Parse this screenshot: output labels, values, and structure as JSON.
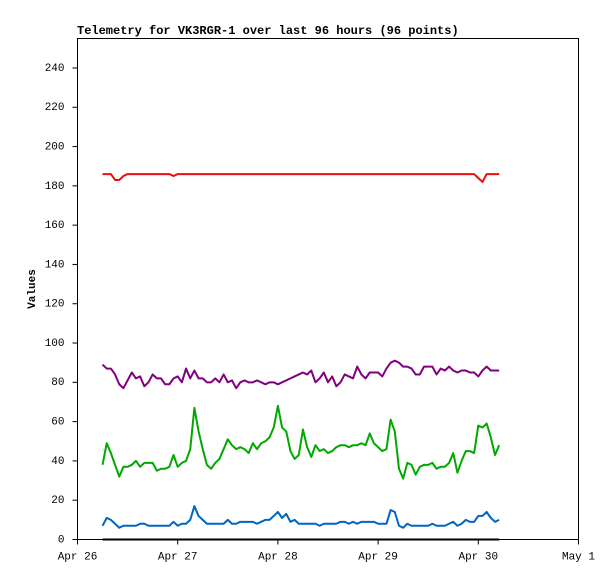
{
  "chart_data": {
    "type": "line",
    "title": "Telemetry for VK3RGR-1 over last 96 hours (96 points)",
    "y_label": "Values",
    "xlim": [
      0,
      120
    ],
    "xticks": [
      {
        "value": 0,
        "label": "Apr 26"
      },
      {
        "value": 24,
        "label": "Apr 27"
      },
      {
        "value": 48,
        "label": "Apr 28"
      },
      {
        "value": 72,
        "label": "Apr 29"
      },
      {
        "value": 96,
        "label": "Apr 30"
      },
      {
        "value": 120,
        "label": "May 1"
      }
    ],
    "ylim": [
      0,
      255
    ],
    "yticks": [
      0,
      20,
      40,
      60,
      80,
      100,
      120,
      140,
      160,
      180,
      200,
      220,
      240
    ],
    "grid": false,
    "x": [
      6,
      7,
      8,
      9,
      10,
      11,
      12,
      13,
      14,
      15,
      16,
      17,
      18,
      19,
      20,
      21,
      22,
      23,
      24,
      25,
      26,
      27,
      28,
      29,
      30,
      31,
      32,
      33,
      34,
      35,
      36,
      37,
      38,
      39,
      40,
      41,
      42,
      43,
      44,
      45,
      46,
      47,
      48,
      49,
      50,
      51,
      52,
      53,
      54,
      55,
      56,
      57,
      58,
      59,
      60,
      61,
      62,
      63,
      64,
      65,
      66,
      67,
      68,
      69,
      70,
      71,
      72,
      73,
      74,
      75,
      76,
      77,
      78,
      79,
      80,
      81,
      82,
      83,
      84,
      85,
      86,
      87,
      88,
      89,
      90,
      91,
      92,
      93,
      94,
      95,
      96,
      97,
      98,
      99,
      100,
      101
    ],
    "series": [
      {
        "color": "#e8100f",
        "values": [
          186,
          186,
          186,
          183,
          183,
          185,
          186,
          186,
          186,
          186,
          186,
          186,
          186,
          186,
          186,
          186,
          186,
          185,
          186,
          186,
          186,
          186,
          186,
          186,
          186,
          186,
          186,
          186,
          186,
          186,
          186,
          186,
          186,
          186,
          186,
          186,
          186,
          186,
          186,
          186,
          186,
          186,
          186,
          186,
          186,
          186,
          186,
          186,
          186,
          186,
          186,
          186,
          186,
          186,
          186,
          186,
          186,
          186,
          186,
          186,
          186,
          186,
          186,
          186,
          186,
          186,
          186,
          186,
          186,
          186,
          186,
          186,
          186,
          186,
          186,
          186,
          186,
          186,
          186,
          186,
          186,
          186,
          186,
          186,
          186,
          186,
          186,
          186,
          186,
          186,
          184,
          182,
          186,
          186,
          186,
          186
        ]
      },
      {
        "color": "#800080",
        "values": [
          89,
          87,
          87,
          84,
          79,
          77,
          81,
          85,
          82,
          83,
          78,
          80,
          84,
          82,
          82,
          79,
          79,
          82,
          83,
          80,
          87,
          82,
          86,
          82,
          82,
          80,
          80,
          82,
          80,
          84,
          80,
          81,
          77,
          80,
          81,
          80,
          80,
          81,
          80,
          79,
          80,
          80,
          79,
          80,
          81,
          82,
          83,
          84,
          85,
          84,
          86,
          80,
          82,
          85,
          80,
          83,
          78,
          80,
          84,
          83,
          82,
          88,
          84,
          82,
          85,
          85,
          85,
          83,
          87,
          90,
          91,
          90,
          88,
          88,
          87,
          84,
          84,
          88,
          88,
          88,
          84,
          87,
          86,
          88,
          86,
          85,
          86,
          86,
          85,
          85,
          83,
          86,
          88,
          86,
          86,
          86
        ]
      },
      {
        "color": "#00a800",
        "values": [
          38,
          49,
          44,
          38,
          32,
          37,
          37,
          38,
          40,
          37,
          39,
          39,
          39,
          35,
          36,
          36,
          37,
          43,
          37,
          39,
          40,
          46,
          67,
          55,
          46,
          38,
          36,
          39,
          41,
          46,
          51,
          48,
          46,
          47,
          46,
          44,
          49,
          46,
          49,
          50,
          52,
          57,
          68,
          57,
          55,
          45,
          41,
          43,
          56,
          47,
          42,
          48,
          45,
          46,
          44,
          45,
          47,
          48,
          48,
          47,
          48,
          48,
          49,
          48,
          54,
          49,
          47,
          45,
          46,
          61,
          55,
          36,
          31,
          39,
          38,
          33,
          37,
          38,
          38,
          39,
          36,
          37,
          37,
          39,
          44,
          34,
          40,
          45,
          45,
          44,
          58,
          57,
          59,
          52,
          43,
          48
        ]
      },
      {
        "color": "#0066c0",
        "values": [
          7,
          11,
          10,
          8,
          6,
          7,
          7,
          7,
          7,
          8,
          8,
          7,
          7,
          7,
          7,
          7,
          7,
          9,
          7,
          8,
          8,
          10,
          17,
          12,
          10,
          8,
          8,
          8,
          8,
          8,
          10,
          8,
          8,
          9,
          9,
          9,
          9,
          8,
          9,
          10,
          10,
          12,
          14,
          11,
          13,
          9,
          10,
          8,
          8,
          8,
          8,
          8,
          7,
          8,
          8,
          8,
          8,
          9,
          9,
          8,
          9,
          8,
          9,
          9,
          9,
          9,
          8,
          8,
          8,
          15,
          14,
          7,
          6,
          8,
          7,
          7,
          7,
          7,
          7,
          8,
          7,
          7,
          7,
          8,
          9,
          7,
          8,
          10,
          9,
          9,
          12,
          12,
          14,
          11,
          9,
          10
        ]
      },
      {
        "color": "#000000",
        "values": [
          0,
          0,
          0,
          0,
          0,
          0,
          0,
          0,
          0,
          0,
          0,
          0,
          0,
          0,
          0,
          0,
          0,
          0,
          0,
          0,
          0,
          0,
          0,
          0,
          0,
          0,
          0,
          0,
          0,
          0,
          0,
          0,
          0,
          0,
          0,
          0,
          0,
          0,
          0,
          0,
          0,
          0,
          0,
          0,
          0,
          0,
          0,
          0,
          0,
          0,
          0,
          0,
          0,
          0,
          0,
          0,
          0,
          0,
          0,
          0,
          0,
          0,
          0,
          0,
          0,
          0,
          0,
          0,
          0,
          0,
          0,
          0,
          0,
          0,
          0,
          0,
          0,
          0,
          0,
          0,
          0,
          0,
          0,
          0,
          0,
          0,
          0,
          0,
          0,
          0,
          0,
          0,
          0,
          0,
          0,
          0
        ]
      }
    ]
  }
}
